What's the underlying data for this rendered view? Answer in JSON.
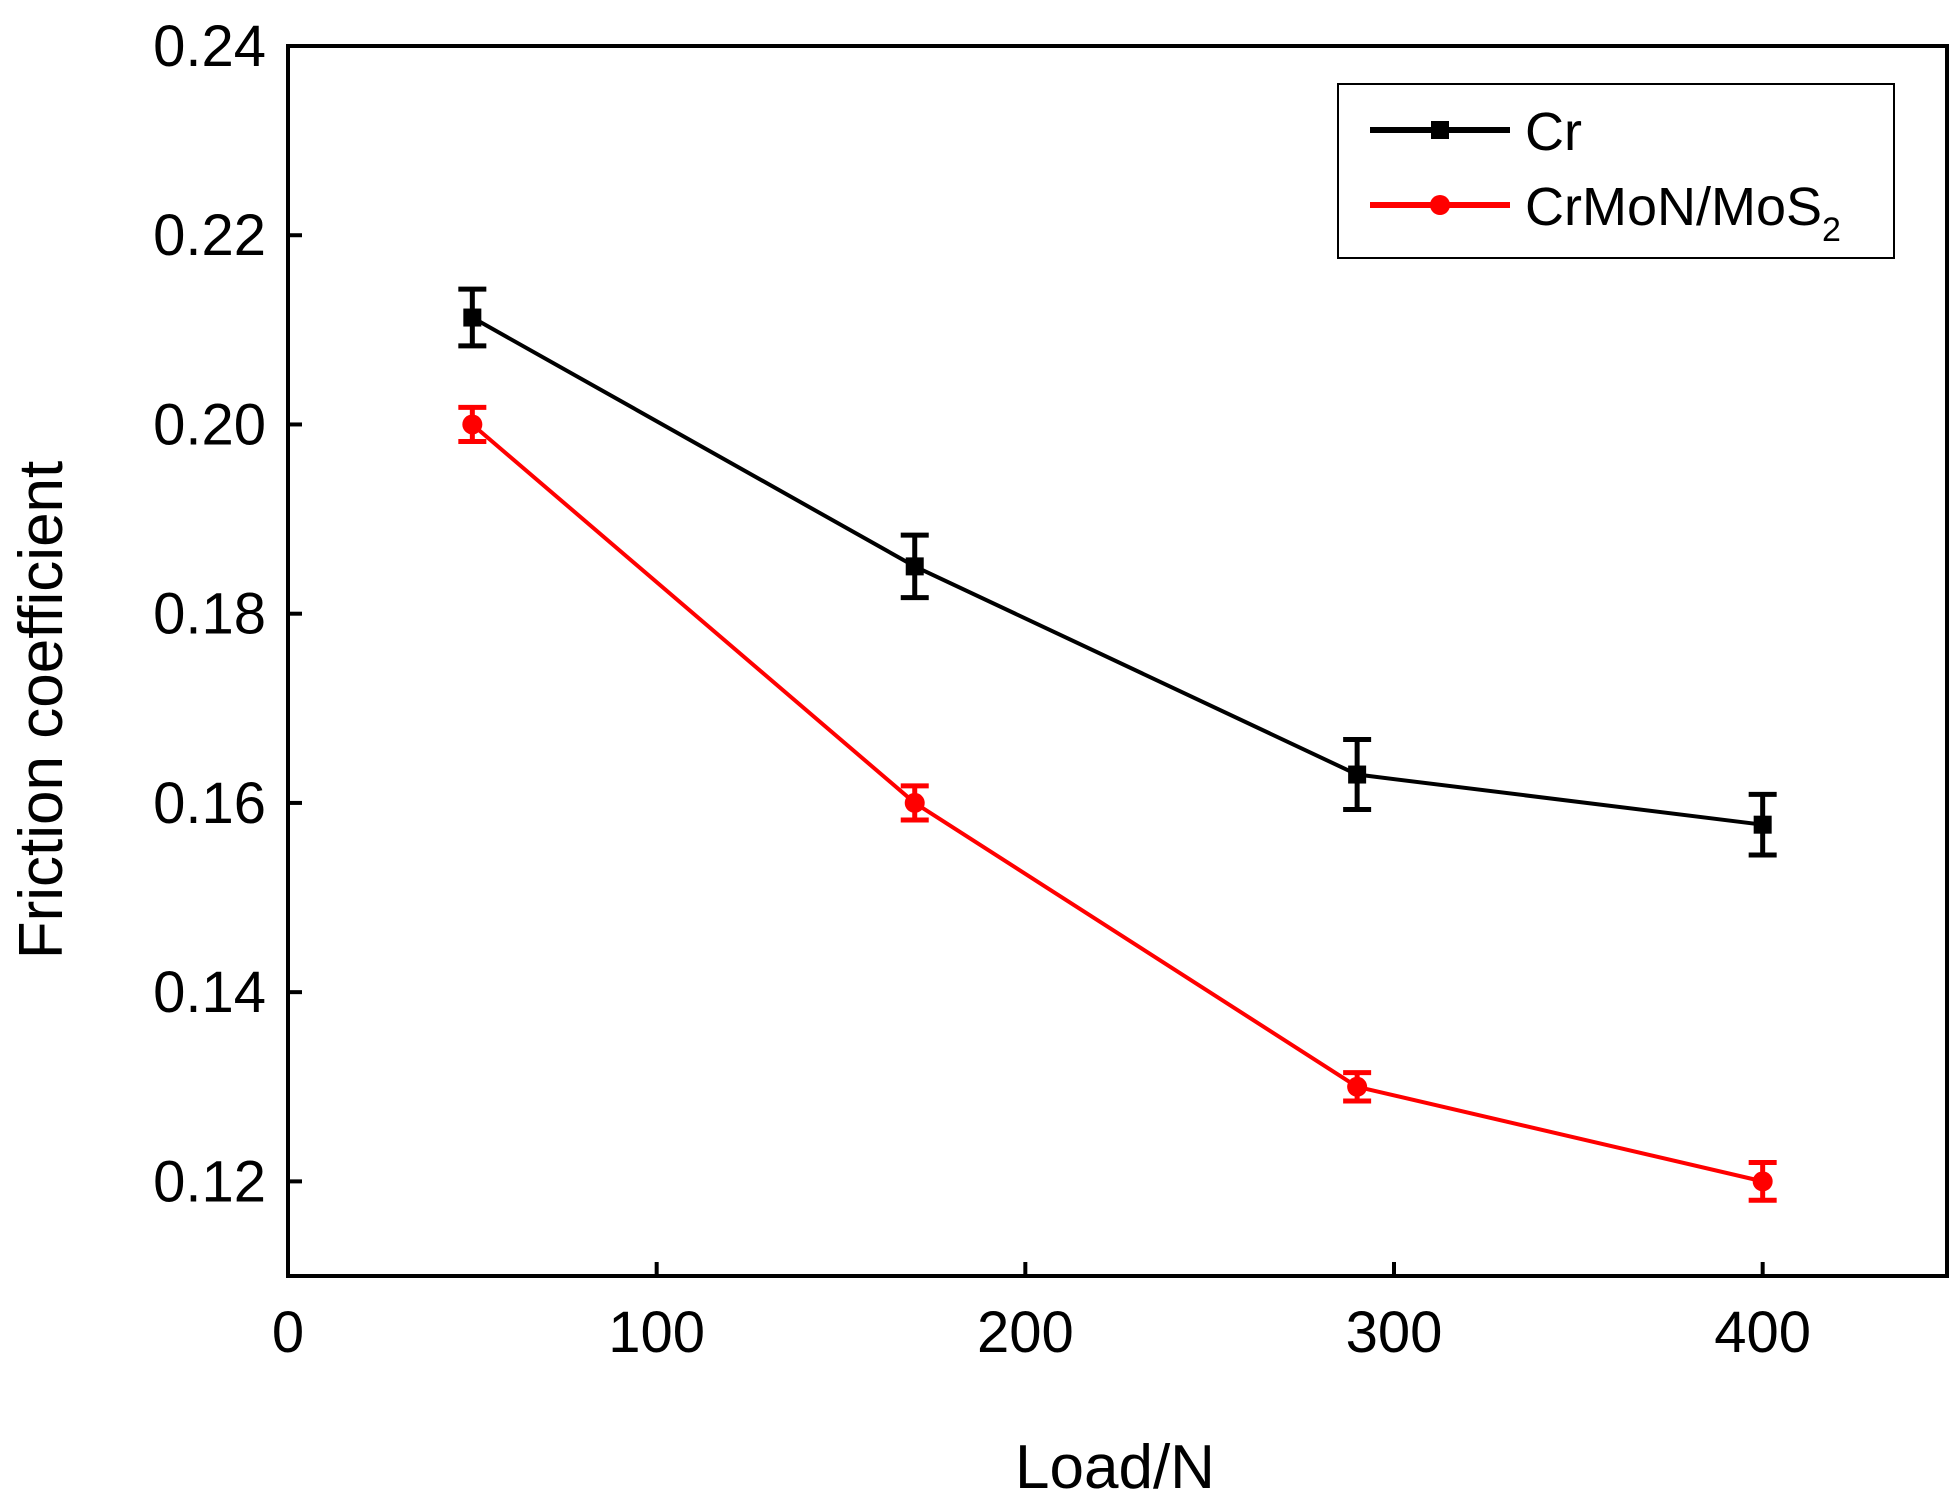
{
  "chart_data": {
    "type": "line",
    "title": "",
    "xlabel": "Load/N",
    "ylabel": "Friction coefficient",
    "xlim": [
      0,
      450
    ],
    "ylim": [
      0.11,
      0.24
    ],
    "xticks": [
      0,
      100,
      200,
      300,
      400
    ],
    "xtick_labels": [
      "0",
      "100",
      "200",
      "300",
      "400"
    ],
    "yticks": [
      0.12,
      0.14,
      0.16,
      0.18,
      0.2,
      0.22,
      0.24
    ],
    "ytick_labels": [
      "0.12",
      "0.14",
      "0.16",
      "0.18",
      "0.20",
      "0.22",
      "0.24"
    ],
    "grid": false,
    "legend_position": "top-right",
    "series": [
      {
        "name": "Cr",
        "legend_label": "Cr",
        "legend_sub": "",
        "color": "#000000",
        "marker": "square",
        "x": [
          50,
          170,
          290,
          400
        ],
        "y": [
          0.2113,
          0.185,
          0.163,
          0.1577
        ],
        "err": [
          0.003,
          0.0033,
          0.0037,
          0.0032
        ]
      },
      {
        "name": "CrMoN/MoS2",
        "legend_label": "CrMoN/MoS",
        "legend_sub": "2",
        "color": "#ff0000",
        "marker": "circle",
        "x": [
          50,
          170,
          290,
          400
        ],
        "y": [
          0.2,
          0.16,
          0.13,
          0.12
        ],
        "err": [
          0.0018,
          0.0018,
          0.0015,
          0.002
        ]
      }
    ]
  }
}
